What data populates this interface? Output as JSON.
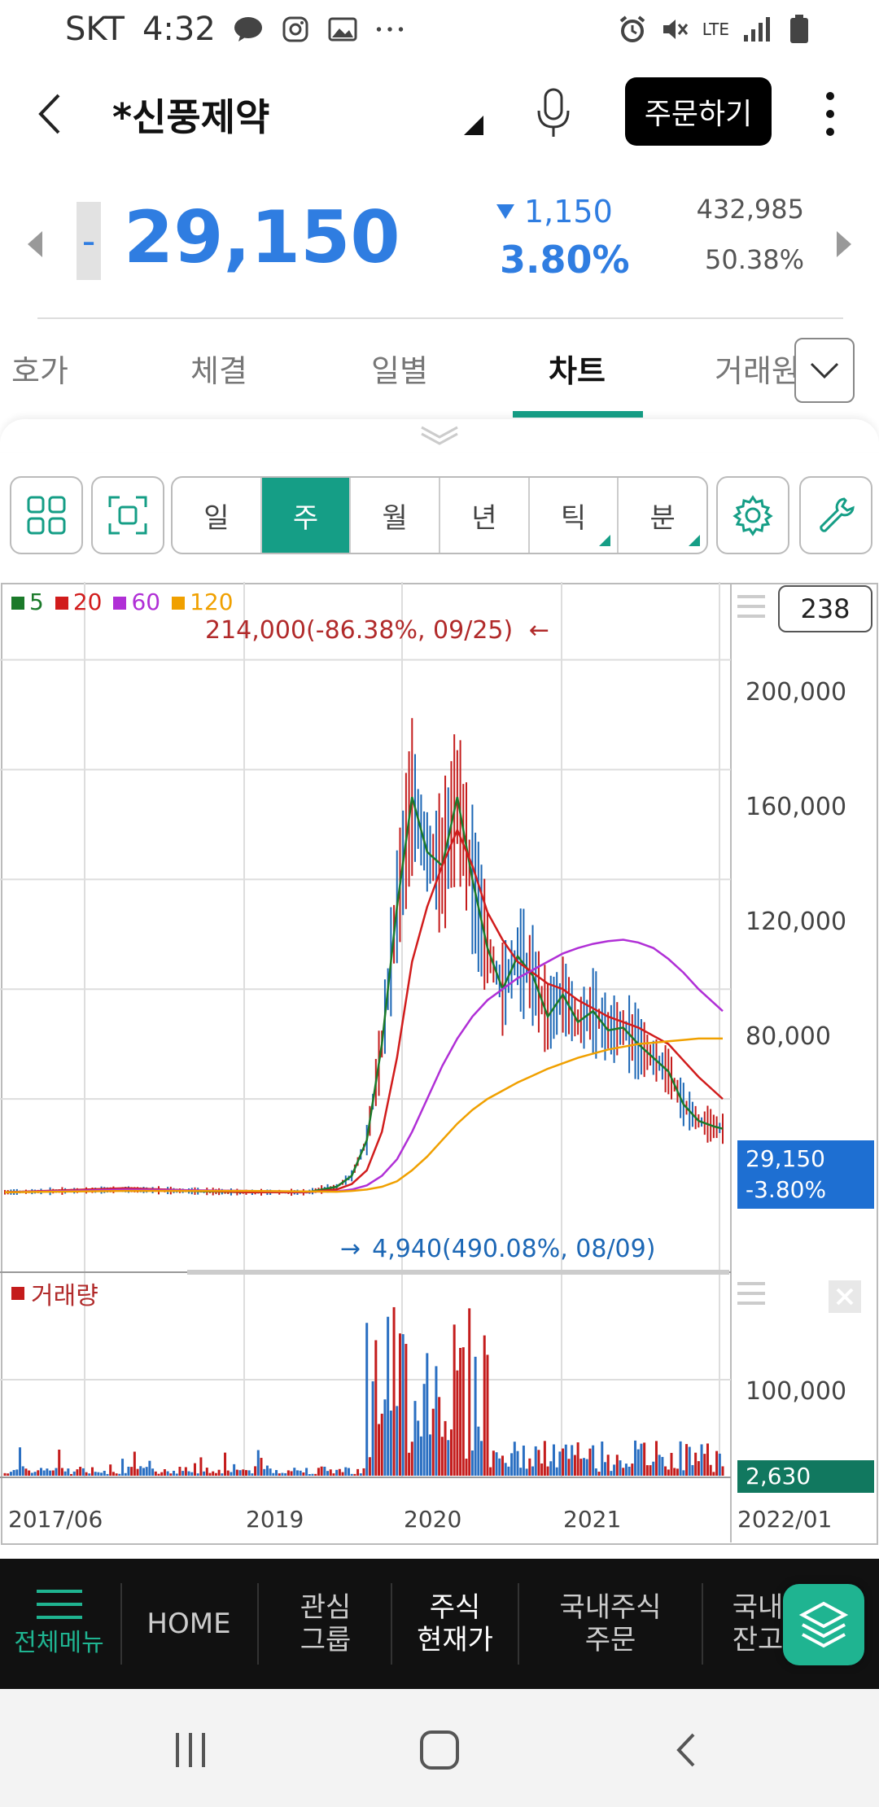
{
  "status_bar": {
    "carrier": "SKT",
    "time": "4:32",
    "network": "LTE"
  },
  "header": {
    "stock_name": "*신풍제약",
    "order_button": "주문하기"
  },
  "price": {
    "sign": "-",
    "current": "29,150",
    "change": "1,150",
    "change_pct": "3.80%",
    "volume": "432,985",
    "ratio": "50.38%"
  },
  "tabs": [
    {
      "label": "호가"
    },
    {
      "label": "체결"
    },
    {
      "label": "일별"
    },
    {
      "label": "차트"
    },
    {
      "label": "거래원"
    }
  ],
  "toolbar": {
    "periods": [
      {
        "label": "일"
      },
      {
        "label": "주"
      },
      {
        "label": "월"
      },
      {
        "label": "년"
      },
      {
        "label": "틱"
      },
      {
        "label": "분"
      }
    ],
    "active_period": "주"
  },
  "chart_box": {
    "count": "238"
  },
  "chart_data": {
    "type": "line",
    "legend": [
      {
        "label": "5",
        "color": "#1b7a2a"
      },
      {
        "label": "20",
        "color": "#d11c1c"
      },
      {
        "label": "60",
        "color": "#b02fd6"
      },
      {
        "label": "120",
        "color": "#f0a000"
      }
    ],
    "y_ticks": [
      "200,000",
      "160,000",
      "120,000",
      "80,000"
    ],
    "ylim": [
      0,
      215000
    ],
    "x_ticks": [
      "2017/06",
      "2019",
      "2020",
      "2021",
      "2022/01"
    ],
    "annotations": {
      "high": "214,000(-86.38%, 09/25)",
      "low": "4,940(490.08%, 08/09)"
    },
    "last_price": "29,150",
    "last_change": "-3.80%",
    "volume_title": "거래량",
    "volume_ticks": [
      "100,000"
    ],
    "last_volume": "2,630",
    "series": [
      {
        "name": "5",
        "x": [
          0,
          40,
          80,
          100,
          110,
          115,
          120,
          125,
          130,
          135,
          140,
          145,
          150,
          155,
          160,
          165,
          170,
          175,
          180,
          185,
          190,
          195,
          200,
          205,
          210,
          215,
          220,
          225,
          230,
          235,
          238
        ],
        "values": [
          6000,
          7000,
          6000,
          6000,
          8000,
          12000,
          25000,
          60000,
          110000,
          150000,
          130000,
          125000,
          150000,
          120000,
          95000,
          80000,
          92000,
          85000,
          70000,
          78000,
          68000,
          72000,
          65000,
          66000,
          60000,
          55000,
          50000,
          38000,
          32000,
          30000,
          29150
        ]
      },
      {
        "name": "20",
        "x": [
          0,
          40,
          80,
          100,
          110,
          115,
          120,
          125,
          130,
          135,
          140,
          145,
          150,
          155,
          160,
          165,
          170,
          175,
          180,
          185,
          190,
          195,
          200,
          205,
          210,
          215,
          220,
          225,
          230,
          235,
          238
        ],
        "values": [
          6000,
          7500,
          6000,
          6000,
          7000,
          9000,
          14000,
          28000,
          55000,
          90000,
          110000,
          125000,
          138000,
          125000,
          108000,
          98000,
          90000,
          86000,
          82000,
          80000,
          76000,
          73000,
          70000,
          68000,
          66000,
          63000,
          60000,
          54000,
          48000,
          43000,
          40000
        ]
      },
      {
        "name": "60",
        "x": [
          0,
          40,
          80,
          100,
          110,
          115,
          120,
          125,
          130,
          135,
          140,
          145,
          150,
          155,
          160,
          165,
          170,
          175,
          180,
          185,
          190,
          195,
          200,
          205,
          210,
          215,
          220,
          225,
          230,
          235,
          238
        ],
        "values": [
          6000,
          7000,
          6500,
          6200,
          6300,
          7000,
          8500,
          12000,
          18000,
          28000,
          40000,
          52000,
          62000,
          70000,
          76000,
          80000,
          84000,
          87000,
          90000,
          93000,
          95000,
          96500,
          97500,
          98000,
          97000,
          95000,
          91000,
          86000,
          80000,
          75000,
          72000
        ]
      },
      {
        "name": "120",
        "x": [
          0,
          40,
          80,
          100,
          110,
          115,
          120,
          125,
          130,
          135,
          140,
          145,
          150,
          155,
          160,
          165,
          170,
          175,
          180,
          185,
          190,
          195,
          200,
          205,
          210,
          215,
          220,
          225,
          230,
          235,
          238
        ],
        "values": [
          6000,
          6500,
          6500,
          6300,
          6200,
          6500,
          7000,
          8000,
          10000,
          14000,
          19000,
          25000,
          31000,
          36000,
          40000,
          43000,
          46000,
          48500,
          51000,
          53000,
          55000,
          56500,
          58000,
          59000,
          60000,
          60500,
          61000,
          61500,
          62000,
          62000,
          62000
        ]
      }
    ]
  },
  "bottom_nav": {
    "menu": "전체메뉴",
    "home": "HOME",
    "interest": [
      "관심",
      "그룹"
    ],
    "stock_now": [
      "주식",
      "현재가"
    ],
    "domestic_order": [
      "국내주식",
      "주문"
    ],
    "partial": [
      "국내",
      "잔고"
    ]
  }
}
